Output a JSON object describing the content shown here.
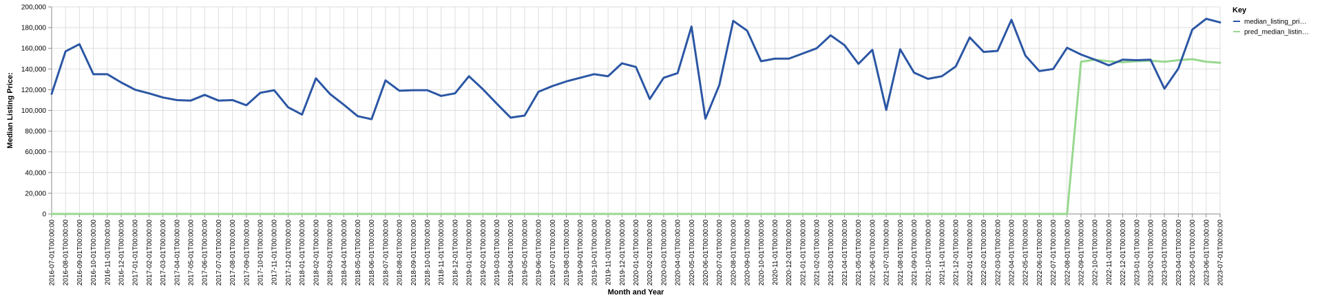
{
  "chart_data": {
    "type": "line",
    "xlabel": "Month and Year",
    "ylabel": "Median Listing Price:",
    "ylim": [
      0,
      200000
    ],
    "yticks": [
      0,
      20000,
      40000,
      60000,
      80000,
      100000,
      120000,
      140000,
      160000,
      180000,
      200000
    ],
    "ytick_labels": [
      "0",
      "20,000",
      "40,000",
      "60,000",
      "80,000",
      "100,000",
      "120,000",
      "140,000",
      "160,000",
      "180,000",
      "200,000"
    ],
    "grid": true,
    "legend_position": "right",
    "legend_title": "Key",
    "categories": [
      "2016-07-01T00:00:00",
      "2016-08-01T00:00:00",
      "2016-09-01T00:00:00",
      "2016-10-01T00:00:00",
      "2016-11-01T00:00:00",
      "2016-12-01T00:00:00",
      "2017-01-01T00:00:00",
      "2017-02-01T00:00:00",
      "2017-03-01T00:00:00",
      "2017-04-01T00:00:00",
      "2017-05-01T00:00:00",
      "2017-06-01T00:00:00",
      "2017-07-01T00:00:00",
      "2017-08-01T00:00:00",
      "2017-09-01T00:00:00",
      "2017-10-01T00:00:00",
      "2017-11-01T00:00:00",
      "2017-12-01T00:00:00",
      "2018-01-01T00:00:00",
      "2018-02-01T00:00:00",
      "2018-03-01T00:00:00",
      "2018-04-01T00:00:00",
      "2018-05-01T00:00:00",
      "2018-06-01T00:00:00",
      "2018-07-01T00:00:00",
      "2018-08-01T00:00:00",
      "2018-09-01T00:00:00",
      "2018-10-01T00:00:00",
      "2018-11-01T00:00:00",
      "2018-12-01T00:00:00",
      "2019-01-01T00:00:00",
      "2019-02-01T00:00:00",
      "2019-03-01T00:00:00",
      "2019-04-01T00:00:00",
      "2019-05-01T00:00:00",
      "2019-06-01T00:00:00",
      "2019-07-01T00:00:00",
      "2019-08-01T00:00:00",
      "2019-09-01T00:00:00",
      "2019-10-01T00:00:00",
      "2019-11-01T00:00:00",
      "2019-12-01T00:00:00",
      "2020-01-01T00:00:00",
      "2020-02-01T00:00:00",
      "2020-03-01T00:00:00",
      "2020-04-01T00:00:00",
      "2020-05-01T00:00:00",
      "2020-06-01T00:00:00",
      "2020-07-01T00:00:00",
      "2020-08-01T00:00:00",
      "2020-09-01T00:00:00",
      "2020-10-01T00:00:00",
      "2020-11-01T00:00:00",
      "2020-12-01T00:00:00",
      "2021-01-01T00:00:00",
      "2021-02-01T00:00:00",
      "2021-03-01T00:00:00",
      "2021-04-01T00:00:00",
      "2021-05-01T00:00:00",
      "2021-06-01T00:00:00",
      "2021-07-01T00:00:00",
      "2021-08-01T00:00:00",
      "2021-09-01T00:00:00",
      "2021-10-01T00:00:00",
      "2021-11-01T00:00:00",
      "2021-12-01T00:00:00",
      "2022-01-01T00:00:00",
      "2022-02-01T00:00:00",
      "2022-03-01T00:00:00",
      "2022-04-01T00:00:00",
      "2022-05-01T00:00:00",
      "2022-06-01T00:00:00",
      "2022-07-01T00:00:00",
      "2022-08-01T00:00:00",
      "2022-09-01T00:00:00",
      "2022-10-01T00:00:00",
      "2022-11-01T00:00:00",
      "2022-12-01T00:00:00",
      "2023-01-01T00:00:00",
      "2023-02-01T00:00:00",
      "2023-03-01T00:00:00",
      "2023-04-01T00:00:00",
      "2023-05-01T00:00:00",
      "2023-06-01T00:00:00",
      "2023-07-01T00:00:00"
    ],
    "series": [
      {
        "name": "median_listing_pri…",
        "color": "#2b56a4",
        "values": [
          116000,
          157000,
          164000,
          135000,
          135000,
          127000,
          120000,
          116500,
          112500,
          110000,
          109500,
          115000,
          109500,
          110000,
          105000,
          117000,
          119500,
          103000,
          96000,
          131000,
          116000,
          105500,
          94500,
          91500,
          129000,
          119000,
          119500,
          119500,
          114000,
          116500,
          133000,
          120500,
          106500,
          93000,
          95000,
          118000,
          123500,
          128000,
          131500,
          135000,
          133000,
          145500,
          142000,
          111000,
          131500,
          136000,
          181000,
          92000,
          124500,
          186500,
          177000,
          147500,
          150000,
          150000,
          155000,
          160000,
          172500,
          163000,
          145000,
          158500,
          100500,
          159000,
          136500,
          130500,
          133000,
          142500,
          170500,
          156500,
          157500,
          187500,
          153000,
          138000,
          140000,
          160500,
          154000,
          149000,
          143500,
          149000,
          148500,
          149000,
          121000,
          140500,
          178000,
          188500,
          185000
        ]
      },
      {
        "name": "pred_median_listin…",
        "color": "#98d88f",
        "values": [
          0,
          0,
          0,
          0,
          0,
          0,
          0,
          0,
          0,
          0,
          0,
          0,
          0,
          0,
          0,
          0,
          0,
          0,
          0,
          0,
          0,
          0,
          0,
          0,
          0,
          0,
          0,
          0,
          0,
          0,
          0,
          0,
          0,
          0,
          0,
          0,
          0,
          0,
          0,
          0,
          0,
          0,
          0,
          0,
          0,
          0,
          0,
          0,
          0,
          0,
          0,
          0,
          0,
          0,
          0,
          0,
          0,
          0,
          0,
          0,
          0,
          0,
          0,
          0,
          0,
          0,
          0,
          0,
          0,
          0,
          0,
          0,
          0,
          0,
          147000,
          149000,
          147500,
          146500,
          147500,
          148000,
          147000,
          148500,
          149500,
          147000,
          146000
        ]
      }
    ]
  }
}
